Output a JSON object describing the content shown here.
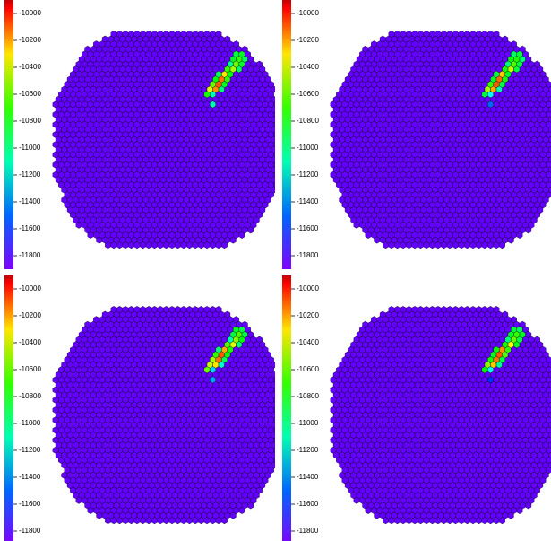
{
  "chart_data": [
    {
      "type": "hexmap",
      "zlim": [
        -11900,
        -9900
      ],
      "zticks": [
        -10000,
        -10200,
        -10400,
        -10600,
        -10800,
        -11000,
        -11200,
        -11400,
        -11600,
        -11800
      ],
      "background_value": -11850,
      "cells": {
        "x": [
          31,
          32,
          30,
          31,
          32,
          30,
          31,
          32,
          29,
          30,
          31,
          28,
          29,
          30,
          27,
          28,
          29,
          27,
          28,
          29,
          26,
          27,
          28,
          26,
          27,
          27
        ],
        "y": [
          4,
          4,
          5,
          5,
          5,
          6,
          6,
          6,
          7,
          7,
          7,
          8,
          8,
          8,
          9,
          9,
          9,
          10,
          10,
          10,
          11,
          11,
          11,
          12,
          12,
          14
        ],
        "values": [
          -10900,
          -10850,
          -10850,
          -10700,
          -10950,
          -11050,
          -10600,
          -10850,
          -10700,
          -10500,
          -10950,
          -10950,
          -10300,
          -10800,
          -10800,
          -10100,
          -10700,
          -10600,
          -10050,
          -10850,
          -10400,
          -10150,
          -11000,
          -10750,
          -11100,
          -11100
        ]
      }
    },
    {
      "type": "hexmap",
      "zlim": [
        -11900,
        -9900
      ],
      "zticks": [
        -10000,
        -10200,
        -10400,
        -10600,
        -10800,
        -11000,
        -11200,
        -11400,
        -11600,
        -11800
      ],
      "background_value": -11850,
      "cells": {
        "x": [
          31,
          32,
          30,
          31,
          32,
          30,
          31,
          32,
          29,
          30,
          31,
          28,
          29,
          30,
          27,
          28,
          29,
          27,
          28,
          29,
          26,
          27,
          28,
          26,
          27,
          27
        ],
        "y": [
          4,
          4,
          5,
          5,
          5,
          6,
          6,
          6,
          7,
          7,
          7,
          8,
          8,
          8,
          9,
          9,
          9,
          10,
          10,
          10,
          11,
          11,
          11,
          12,
          12,
          14
        ],
        "values": [
          -10950,
          -10900,
          -10800,
          -10750,
          -11000,
          -11000,
          -10650,
          -10900,
          -10750,
          -10450,
          -10900,
          -10900,
          -10250,
          -10850,
          -10850,
          -10080,
          -10750,
          -10700,
          -10050,
          -10900,
          -10500,
          -10200,
          -11100,
          -10900,
          -11200,
          -11500
        ]
      }
    },
    {
      "type": "hexmap",
      "zlim": [
        -11900,
        -9900
      ],
      "zticks": [
        -10000,
        -10200,
        -10400,
        -10600,
        -10800,
        -11000,
        -11200,
        -11400,
        -11600,
        -11800
      ],
      "background_value": -11850,
      "cells": {
        "x": [
          31,
          32,
          30,
          31,
          32,
          30,
          31,
          32,
          29,
          30,
          31,
          28,
          29,
          30,
          27,
          28,
          29,
          27,
          28,
          29,
          26,
          27,
          28,
          26,
          27,
          27
        ],
        "y": [
          4,
          4,
          5,
          5,
          5,
          6,
          6,
          6,
          7,
          7,
          7,
          8,
          8,
          8,
          9,
          9,
          9,
          10,
          10,
          10,
          11,
          11,
          11,
          12,
          12,
          14
        ],
        "values": [
          -10850,
          -10900,
          -10900,
          -10650,
          -10900,
          -11100,
          -10550,
          -10800,
          -10650,
          -10400,
          -11000,
          -11000,
          -10200,
          -10750,
          -10700,
          -10050,
          -10800,
          -10500,
          -10100,
          -10950,
          -10450,
          -10300,
          -11150,
          -10600,
          -11300,
          -11400
        ]
      }
    },
    {
      "type": "hexmap",
      "zlim": [
        -11900,
        -9900
      ],
      "zticks": [
        -10000,
        -10200,
        -10400,
        -10600,
        -10800,
        -11000,
        -11200,
        -11400,
        -11600,
        -11800
      ],
      "background_value": -11850,
      "cells": {
        "x": [
          31,
          32,
          30,
          31,
          32,
          30,
          31,
          32,
          29,
          30,
          31,
          28,
          29,
          30,
          27,
          28,
          29,
          27,
          28,
          29,
          26,
          27,
          28,
          26,
          27,
          27
        ],
        "y": [
          4,
          4,
          5,
          5,
          5,
          6,
          6,
          6,
          7,
          7,
          7,
          8,
          8,
          8,
          9,
          9,
          9,
          10,
          10,
          10,
          11,
          11,
          11,
          12,
          12,
          14
        ],
        "values": [
          -10900,
          -10950,
          -10850,
          -10700,
          -10850,
          -11000,
          -10600,
          -10900,
          -10750,
          -10350,
          -10850,
          -10800,
          -10150,
          -10700,
          -10850,
          -10050,
          -10650,
          -10750,
          -10100,
          -10900,
          -10550,
          -10250,
          -11050,
          -10800,
          -11200,
          -11600
        ]
      }
    }
  ]
}
